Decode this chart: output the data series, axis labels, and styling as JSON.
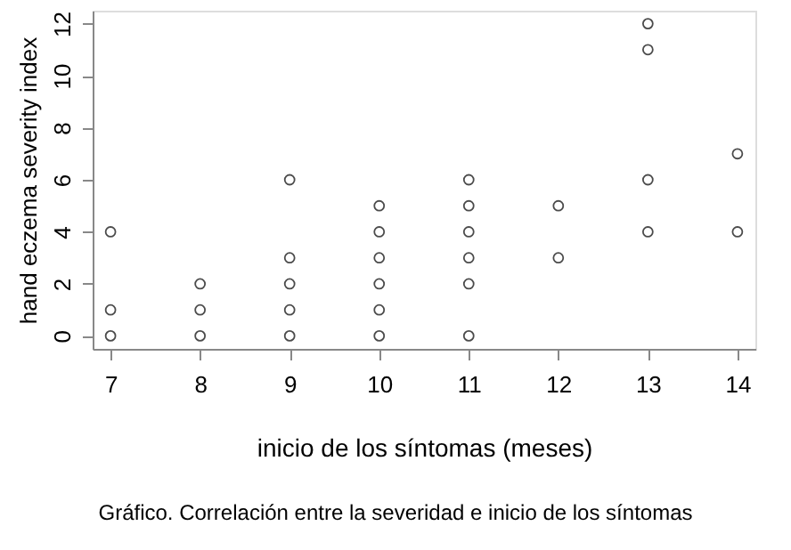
{
  "chart_data": {
    "type": "scatter",
    "xlabel": "inicio de los síntomas (meses)",
    "ylabel": "hand eczema severity index",
    "x": [
      7,
      7,
      7,
      8,
      8,
      8,
      9,
      9,
      9,
      9,
      9,
      10,
      10,
      10,
      10,
      10,
      10,
      11,
      11,
      11,
      11,
      11,
      11,
      12,
      12,
      13,
      13,
      13,
      13,
      14,
      14
    ],
    "values": [
      0,
      1,
      4,
      0,
      1,
      2,
      0,
      1,
      2,
      3,
      6,
      0,
      1,
      2,
      3,
      4,
      5,
      0,
      2,
      3,
      4,
      5,
      6,
      3,
      5,
      4,
      6,
      11,
      12,
      4,
      7
    ],
    "color": "#000000",
    "marker": "circle",
    "xlim": [
      6.8,
      14.2
    ],
    "xticks": [
      7,
      8,
      9,
      10,
      11,
      12,
      13,
      14
    ],
    "ylim": [
      -0.5,
      12.5
    ],
    "yticks": [
      0,
      2,
      4,
      6,
      8,
      10,
      12
    ],
    "grid": false,
    "annotations": [
      "Gráfico. Correlación entre la severidad e inicio de los síntomas"
    ]
  }
}
